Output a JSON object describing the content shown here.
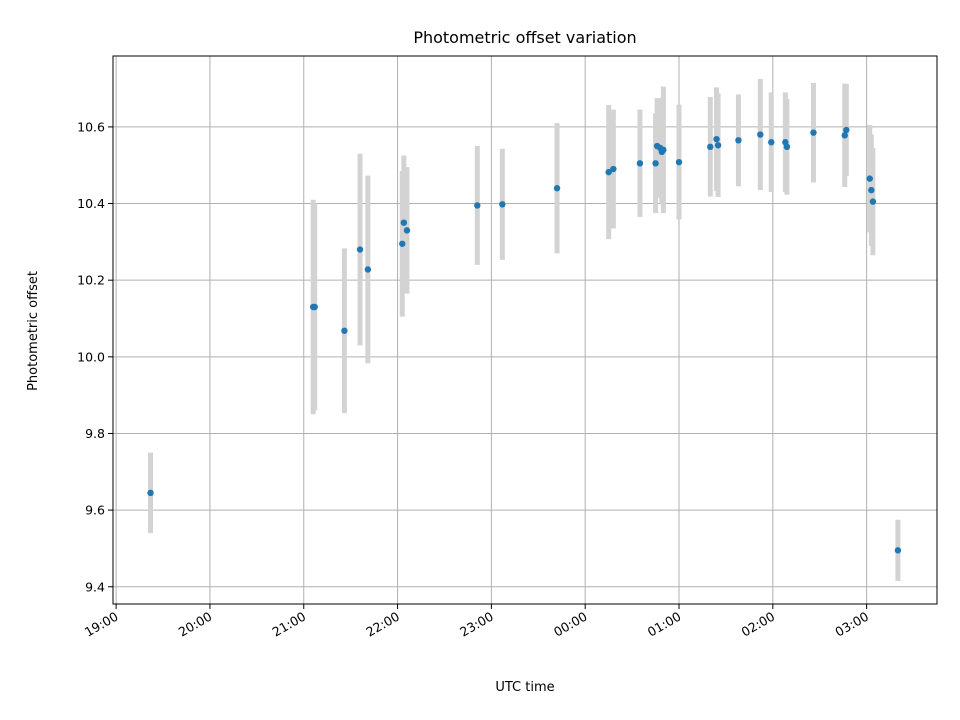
{
  "chart_data": {
    "type": "scatter",
    "title": "Photometric offset variation",
    "xlabel": "UTC time",
    "ylabel": "Photometric offset",
    "x_ticks": [
      "19:00",
      "20:00",
      "21:00",
      "22:00",
      "23:00",
      "00:00",
      "01:00",
      "02:00",
      "03:00"
    ],
    "y_ticks": [
      "9.4",
      "9.6",
      "9.8",
      "10.0",
      "10.2",
      "10.4",
      "10.6"
    ],
    "xlim": [
      "18:58",
      "03:45"
    ],
    "ylim": [
      9.355,
      10.785
    ],
    "grid": true,
    "colors": {
      "point": "#1f77b4",
      "errorbar": "#d3d3d3",
      "grid": "#b0b0b0"
    },
    "points": [
      {
        "t": "19:22",
        "y": 9.645,
        "err": 0.105
      },
      {
        "t": "21:06",
        "y": 10.13,
        "err": 0.28
      },
      {
        "t": "21:07",
        "y": 10.13,
        "err": 0.27
      },
      {
        "t": "21:26",
        "y": 10.068,
        "err": 0.215
      },
      {
        "t": "21:36",
        "y": 10.28,
        "err": 0.25
      },
      {
        "t": "21:41",
        "y": 10.228,
        "err": 0.245
      },
      {
        "t": "22:03",
        "y": 10.295,
        "err": 0.19
      },
      {
        "t": "22:04",
        "y": 10.35,
        "err": 0.175
      },
      {
        "t": "22:06",
        "y": 10.33,
        "err": 0.165
      },
      {
        "t": "22:51",
        "y": 10.395,
        "err": 0.155
      },
      {
        "t": "23:07",
        "y": 10.398,
        "err": 0.145
      },
      {
        "t": "23:42",
        "y": 10.44,
        "err": 0.17
      },
      {
        "t": "00:15",
        "y": 10.482,
        "err": 0.175
      },
      {
        "t": "00:18",
        "y": 10.49,
        "err": 0.155
      },
      {
        "t": "00:35",
        "y": 10.505,
        "err": 0.14
      },
      {
        "t": "00:45",
        "y": 10.505,
        "err": 0.13
      },
      {
        "t": "00:46",
        "y": 10.55,
        "err": 0.125
      },
      {
        "t": "00:48",
        "y": 10.545,
        "err": 0.13
      },
      {
        "t": "00:49",
        "y": 10.535,
        "err": 0.135
      },
      {
        "t": "00:50",
        "y": 10.54,
        "err": 0.165
      },
      {
        "t": "01:00",
        "y": 10.508,
        "err": 0.15
      },
      {
        "t": "01:20",
        "y": 10.548,
        "err": 0.13
      },
      {
        "t": "01:24",
        "y": 10.568,
        "err": 0.135
      },
      {
        "t": "01:25",
        "y": 10.552,
        "err": 0.135
      },
      {
        "t": "01:38",
        "y": 10.565,
        "err": 0.12
      },
      {
        "t": "01:52",
        "y": 10.58,
        "err": 0.145
      },
      {
        "t": "01:59",
        "y": 10.56,
        "err": 0.13
      },
      {
        "t": "02:08",
        "y": 10.56,
        "err": 0.13
      },
      {
        "t": "02:09",
        "y": 10.548,
        "err": 0.125
      },
      {
        "t": "02:26",
        "y": 10.585,
        "err": 0.13
      },
      {
        "t": "02:46",
        "y": 10.578,
        "err": 0.135
      },
      {
        "t": "02:47",
        "y": 10.592,
        "err": 0.12
      },
      {
        "t": "03:02",
        "y": 10.465,
        "err": 0.14
      },
      {
        "t": "03:03",
        "y": 10.435,
        "err": 0.145
      },
      {
        "t": "03:04",
        "y": 10.405,
        "err": 0.14
      },
      {
        "t": "03:20",
        "y": 9.495,
        "err": 0.08
      }
    ]
  }
}
